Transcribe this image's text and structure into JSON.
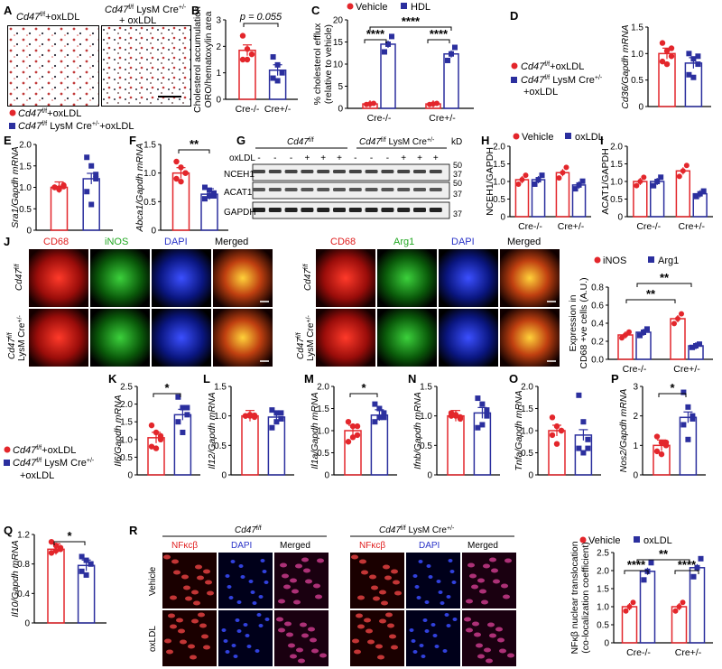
{
  "panels": {
    "A": {
      "letter": "A",
      "img_left_label": "Cd47",
      "img_left_sup": "f/f",
      "img_left_suffix": "+oxLDL",
      "img_right_label": "Cd47",
      "img_right_sup": "f/f",
      "img_right_suffix": " LysM Cre",
      "img_right_sup2": "+/-",
      "img_right_line2": "+ oxLDL",
      "legend": [
        {
          "label": "Cd47",
          "sup": "f/f",
          "suffix": "+oxLDL",
          "color": "#e3262b"
        },
        {
          "label": "Cd47",
          "sup": "f/f",
          "suffix": " LysM Cre",
          "sup2": "+/-",
          "suffix2": "+oxLDL",
          "color": "#2b2f9e"
        }
      ]
    },
    "B": {
      "letter": "B",
      "ylabel_line1": "Cholesterol accumulation",
      "ylabel_line2": "ORO/hematoxylin area",
      "pvalue": "p = 0.055"
    },
    "C": {
      "letter": "C",
      "ylabel_line1": "% cholesterol efflux",
      "ylabel_line2": "(relative to vehicle)",
      "legend": [
        "Vehicle",
        "HDL"
      ],
      "sig_main": "****",
      "sig_left": "****",
      "sig_right": "****"
    },
    "D": {
      "letter": "D",
      "ylabel": "Cd36/Gapdh mRNA",
      "legend": [
        {
          "label": "Cd47",
          "sup": "f/f",
          "suffix": "+oxLDL"
        },
        {
          "label": "Cd47",
          "sup": "f/f",
          "suffix": " LysM Cre",
          "sup2": "+/-",
          "line2": "+oxLDL"
        }
      ]
    },
    "E": {
      "letter": "E",
      "ylabel": "Sra1/Gapdh mRNA"
    },
    "F": {
      "letter": "F",
      "ylabel": "Abca1/Gapdh mRNA",
      "sig": "**"
    },
    "G": {
      "letter": "G",
      "header_left": "Cd47",
      "header_left_sup": "f/f",
      "header_right": "Cd47",
      "header_right_sup": "f/f",
      "header_right_suffix": " LysM Cre",
      "header_right_sup2": "+/-",
      "row_label": "oxLDL",
      "lanes": [
        "-",
        "-",
        "-",
        "+",
        "+",
        "+",
        "-",
        "-",
        "-",
        "+",
        "+",
        "+"
      ],
      "proteins": [
        "NCEH1",
        "ACAT1",
        "GAPDH"
      ],
      "kd_label": "kD",
      "markers": [
        "50",
        "37",
        "50",
        "37",
        "37"
      ]
    },
    "H": {
      "letter": "H",
      "ylabel": "NCEH1/GAPDH",
      "legend": [
        "Vehicle",
        "oxLDL"
      ]
    },
    "I": {
      "letter": "I",
      "ylabel": "ACAT1/GAPDH"
    },
    "J": {
      "letter": "J",
      "cols_left": [
        "CD68",
        "iNOS",
        "DAPI",
        "Merged"
      ],
      "cols_right": [
        "CD68",
        "Arg1",
        "DAPI",
        "Merged"
      ],
      "row1": "Cd47",
      "row1_sup": "f/f",
      "row2_line1": "Cd47",
      "row2_sup": "f/f",
      "row2_line2": "LysM Cre",
      "row2_sup2": "+/-",
      "chart_legend": [
        "iNOS",
        "Arg1"
      ],
      "ylabel_line1": "Expression in",
      "ylabel_line2": "CD68 +ve cells (A.U.)",
      "sig1": "**",
      "sig2": "**"
    },
    "K": {
      "letter": "K",
      "ylabel": "Il6/Gapdh mRNA",
      "sig": "*"
    },
    "L": {
      "letter": "L",
      "ylabel": "Il12/Gapdh mRNA"
    },
    "M": {
      "letter": "M",
      "ylabel": "Il1a/Gapdh mRNA",
      "sig": "*"
    },
    "N": {
      "letter": "N",
      "ylabel": "Ifnb/Gapdh mRNA"
    },
    "O": {
      "letter": "O",
      "ylabel": "Tnfa/Gapdh mRNA"
    },
    "P": {
      "letter": "P",
      "ylabel": "Nos2/Gapdh mRNA",
      "sig": "*"
    },
    "KLegend": [
      {
        "label": "Cd47",
        "sup": "f/f",
        "suffix": "+oxLDL"
      },
      {
        "label": "Cd47",
        "sup": "f/f",
        "suffix": " LysM Cre",
        "sup2": "+/-",
        "line2": "+oxLDL"
      }
    ],
    "Q": {
      "letter": "Q",
      "ylabel": "Il10/Gapdh mRNA",
      "sig": "*"
    },
    "R": {
      "letter": "R",
      "header_left": "Cd47",
      "header_left_sup": "f/f",
      "header_right": "Cd47",
      "header_right_sup": "f/f",
      "header_right_suffix": " LysM Cre",
      "header_right_sup2": "+/-",
      "cols": [
        "NFκcβ",
        "DAPI",
        "Merged"
      ],
      "rows": [
        "Vehicle",
        "oxLDL"
      ],
      "chart_legend": [
        "Vehicle",
        "oxLDL"
      ],
      "ylabel_line1": "NFκβ nuclear translocation",
      "ylabel_line2": "(co-localization coefficient)",
      "sig_main": "**",
      "sig_left": "****",
      "sig_right": "****"
    }
  },
  "colors": {
    "red": "#e3262b",
    "blue": "#2b2f9e"
  },
  "chart_data": [
    {
      "id": "B",
      "type": "bar",
      "categories": [
        "Cre-/-",
        "Cre+/-"
      ],
      "ylim": [
        0,
        3
      ],
      "yticks": [
        0,
        1,
        2,
        3
      ],
      "series": [
        {
          "values": [
            1.85,
            1.1
          ],
          "points": [
            [
              2.4,
              1.9,
              1.7,
              1.5,
              1.5
            ],
            [
              1.6,
              1.3,
              1.0,
              0.8,
              0.7
            ]
          ]
        }
      ]
    },
    {
      "id": "C",
      "type": "bar",
      "categories": [
        "Cre-/-",
        "Cre+/-"
      ],
      "ylim": [
        0,
        20
      ],
      "yticks": [
        0,
        5,
        10,
        15,
        20
      ],
      "series": [
        {
          "name": "Vehicle",
          "values": [
            1,
            1
          ]
        },
        {
          "name": "HDL",
          "values": [
            14.5,
            12.3
          ]
        }
      ]
    },
    {
      "id": "D",
      "type": "bar",
      "categories": [
        "",
        ""
      ],
      "ylim": [
        0,
        1.5
      ],
      "yticks": [
        0,
        0.5,
        1.0,
        1.5
      ],
      "series": [
        {
          "values": [
            1.0,
            0.82
          ],
          "points": [
            [
              1.2,
              1.05,
              0.95,
              0.85,
              0.8,
              1.1
            ],
            [
              1.0,
              0.9,
              0.8,
              0.6,
              0.55,
              0.95
            ]
          ]
        }
      ]
    },
    {
      "id": "E",
      "type": "bar",
      "categories": [
        "",
        ""
      ],
      "ylim": [
        0,
        2.0
      ],
      "yticks": [
        0,
        0.5,
        1.0,
        1.5,
        2.0
      ],
      "series": [
        {
          "values": [
            1.0,
            1.2
          ],
          "points": [
            [
              1.0,
              0.95,
              1.05,
              1.0,
              0.98,
              1.02
            ],
            [
              1.7,
              1.5,
              1.2,
              0.9,
              0.6,
              1.3
            ]
          ]
        }
      ]
    },
    {
      "id": "F",
      "type": "bar",
      "categories": [
        "",
        ""
      ],
      "ylim": [
        0,
        1.5
      ],
      "yticks": [
        0,
        0.5,
        1.0,
        1.5
      ],
      "series": [
        {
          "values": [
            1.0,
            0.63
          ],
          "points": [
            [
              1.2,
              1.1,
              1.0,
              0.9,
              0.85,
              1.0
            ],
            [
              0.75,
              0.7,
              0.6,
              0.55,
              0.6,
              0.65
            ]
          ]
        }
      ]
    },
    {
      "id": "H",
      "type": "bar",
      "categories": [
        "Cre-/-",
        "Cre+/-"
      ],
      "ylim": [
        0,
        2.0
      ],
      "yticks": [
        0,
        0.5,
        1.0,
        1.5,
        2.0
      ],
      "series": [
        {
          "name": "Vehicle",
          "values": [
            1.05,
            1.25
          ]
        },
        {
          "name": "oxLDL",
          "values": [
            1.05,
            0.9
          ]
        }
      ]
    },
    {
      "id": "I",
      "type": "bar",
      "categories": [
        "Cre-/-",
        "Cre+/-"
      ],
      "ylim": [
        0,
        2.0
      ],
      "yticks": [
        0,
        0.5,
        1.0,
        1.5,
        2.0
      ],
      "series": [
        {
          "name": "Vehicle",
          "values": [
            1.0,
            1.3
          ]
        },
        {
          "name": "oxLDL",
          "values": [
            1.0,
            0.65
          ]
        }
      ]
    },
    {
      "id": "J",
      "type": "bar",
      "categories": [
        "Cre-/-",
        "Cre+/-"
      ],
      "ylim": [
        0,
        0.8
      ],
      "yticks": [
        0.0,
        0.2,
        0.4,
        0.6,
        0.8
      ],
      "series": [
        {
          "name": "iNOS",
          "values": [
            0.27,
            0.45
          ]
        },
        {
          "name": "Arg1",
          "values": [
            0.3,
            0.15
          ]
        }
      ]
    },
    {
      "id": "K",
      "type": "bar",
      "categories": [
        "",
        ""
      ],
      "ylim": [
        0,
        2.5
      ],
      "yticks": [
        0,
        0.5,
        1.0,
        1.5,
        2.0,
        2.5
      ],
      "series": [
        {
          "values": [
            1.05,
            1.7
          ],
          "points": [
            [
              1.4,
              1.2,
              1.0,
              0.8,
              0.75,
              1.1
            ],
            [
              2.2,
              1.9,
              1.7,
              1.5,
              1.2,
              1.9
            ]
          ]
        }
      ]
    },
    {
      "id": "L",
      "type": "bar",
      "categories": [
        "",
        ""
      ],
      "ylim": [
        0,
        1.5
      ],
      "yticks": [
        0,
        0.5,
        1.0,
        1.5
      ],
      "series": [
        {
          "values": [
            1.0,
            0.98
          ],
          "points": [
            [
              1.0,
              1.02,
              0.98,
              1.0,
              1.0,
              1.01
            ],
            [
              1.1,
              1.05,
              0.95,
              0.8,
              0.9,
              1.05
            ]
          ]
        }
      ]
    },
    {
      "id": "M",
      "type": "bar",
      "categories": [
        "",
        ""
      ],
      "ylim": [
        0,
        2.0
      ],
      "yticks": [
        0,
        0.5,
        1.0,
        1.5,
        2.0
      ],
      "series": [
        {
          "values": [
            1.0,
            1.35
          ],
          "points": [
            [
              1.2,
              1.1,
              0.9,
              0.75,
              0.85,
              1.1
            ],
            [
              1.6,
              1.5,
              1.3,
              1.2,
              1.3,
              1.4
            ]
          ]
        }
      ]
    },
    {
      "id": "N",
      "type": "bar",
      "categories": [
        "",
        ""
      ],
      "ylim": [
        0,
        1.5
      ],
      "yticks": [
        0,
        0.5,
        1.0,
        1.5
      ],
      "series": [
        {
          "values": [
            1.0,
            1.05
          ],
          "points": [
            [
              1.05,
              1.0,
              0.95,
              1.0,
              1.02,
              0.98
            ],
            [
              1.3,
              1.2,
              1.0,
              0.8,
              0.85,
              1.1
            ]
          ]
        }
      ]
    },
    {
      "id": "O",
      "type": "bar",
      "categories": [
        "",
        ""
      ],
      "ylim": [
        0,
        2.0
      ],
      "yticks": [
        0,
        0.5,
        1.0,
        1.5,
        2.0
      ],
      "series": [
        {
          "values": [
            1.0,
            0.9
          ],
          "points": [
            [
              1.3,
              1.1,
              1.0,
              0.9,
              0.7,
              1.0
            ],
            [
              1.8,
              1.2,
              0.8,
              0.6,
              0.5,
              0.6
            ]
          ]
        }
      ]
    },
    {
      "id": "P",
      "type": "bar",
      "categories": [
        "",
        ""
      ],
      "ylim": [
        0,
        3
      ],
      "yticks": [
        0,
        1,
        2,
        3
      ],
      "series": [
        {
          "values": [
            1.0,
            1.95
          ],
          "points": [
            [
              1.3,
              1.1,
              1.0,
              0.8,
              0.7,
              1.1
            ],
            [
              2.8,
              2.3,
              2.0,
              1.7,
              1.2,
              1.9
            ]
          ]
        }
      ]
    },
    {
      "id": "Q",
      "type": "bar",
      "categories": [
        "",
        ""
      ],
      "ylim": [
        0,
        1.2
      ],
      "yticks": [
        0,
        0.4,
        0.8,
        1.2
      ],
      "series": [
        {
          "values": [
            1.0,
            0.78
          ],
          "points": [
            [
              1.1,
              1.05,
              1.0,
              0.95,
              0.98,
              1.02
            ],
            [
              0.9,
              0.85,
              0.8,
              0.7,
              0.65,
              0.8
            ]
          ]
        }
      ]
    },
    {
      "id": "R",
      "type": "bar",
      "categories": [
        "Cre-/-",
        "Cre+/-"
      ],
      "ylim": [
        0,
        2.5
      ],
      "yticks": [
        0,
        0.5,
        1.0,
        1.5,
        2.0,
        2.5
      ],
      "series": [
        {
          "name": "Vehicle",
          "values": [
            1.0,
            1.0
          ]
        },
        {
          "name": "oxLDL",
          "values": [
            1.98,
            2.08
          ]
        }
      ]
    }
  ]
}
